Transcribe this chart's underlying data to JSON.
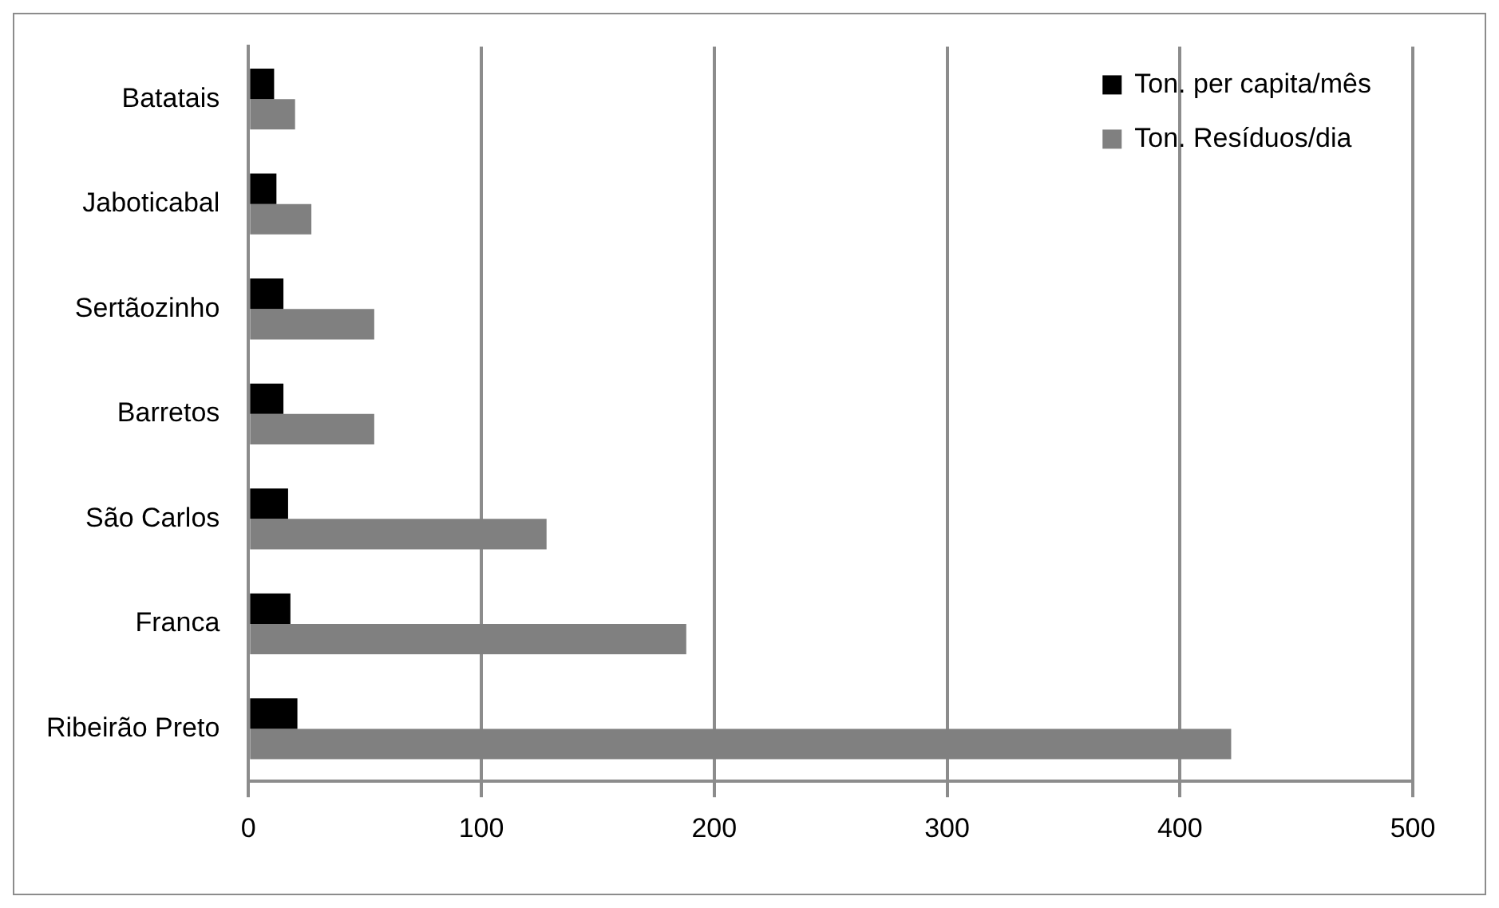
{
  "chart_data": {
    "type": "bar",
    "orientation": "horizontal",
    "categories": [
      "Batatais",
      "Jaboticabal",
      "Sertãozinho",
      "Barretos",
      "São Carlos",
      "Franca",
      "Ribeirão Preto"
    ],
    "series": [
      {
        "name": "Ton. per capita/mês",
        "color": "#000000",
        "values": [
          11,
          12,
          15,
          15,
          17,
          18,
          21
        ]
      },
      {
        "name": "Ton. Resíduos/dia",
        "color": "#808080",
        "values": [
          20,
          27,
          54,
          54,
          128,
          188,
          422
        ]
      }
    ],
    "xlim": [
      0,
      500
    ],
    "xticks": [
      0,
      100,
      200,
      300,
      400,
      500
    ],
    "grid": "x",
    "legend": "top right"
  }
}
